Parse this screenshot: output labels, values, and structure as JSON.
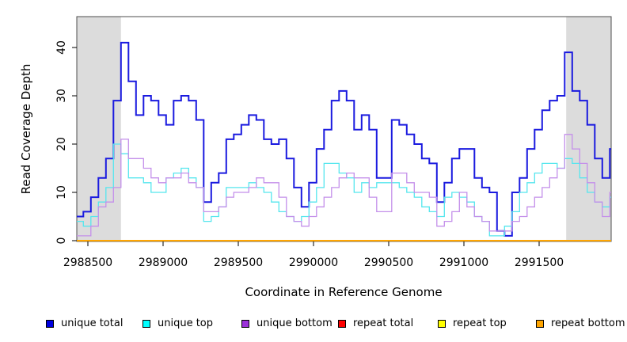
{
  "chart_data": {
    "type": "line",
    "step_interpolation": true,
    "title": "",
    "xlabel": "Coordinate in Reference Genome",
    "ylabel": "Read Coverage Depth",
    "xlim": [
      2988425,
      2991979
    ],
    "ylim": [
      0,
      46
    ],
    "grid": false,
    "legend_position": "bottom",
    "x_ticks": [
      2988500,
      2989000,
      2989500,
      2990000,
      2990500,
      2991000,
      2991500
    ],
    "x_tick_labels": [
      "2988500",
      "2989000",
      "2989500",
      "2990000",
      "2990500",
      "2991000",
      "2991500"
    ],
    "y_ticks": [
      0,
      10,
      20,
      30,
      40
    ],
    "y_tick_labels": [
      "0",
      "10",
      "20",
      "30",
      "40"
    ],
    "shade_color": "#dcdcdc",
    "shaded_regions": [
      {
        "x1": 2988425,
        "x2": 2988720
      },
      {
        "x1": 2991680,
        "x2": 2991979
      }
    ],
    "x_start": 2988420,
    "x_step": 50,
    "series": [
      {
        "name": "unique total",
        "legend_color": "#0000e0",
        "line_color": "#1a1adf",
        "line_width": 2,
        "values": [
          5,
          6,
          9,
          13,
          17,
          29,
          41,
          33,
          26,
          30,
          29,
          26,
          24,
          29,
          30,
          29,
          25,
          8,
          12,
          14,
          21,
          22,
          24,
          26,
          25,
          21,
          20,
          21,
          17,
          11,
          7,
          12,
          19,
          23,
          29,
          31,
          29,
          23,
          26,
          23,
          13,
          13,
          25,
          24,
          22,
          20,
          17,
          16,
          8,
          12,
          17,
          19,
          19,
          13,
          11,
          10,
          2,
          1,
          10,
          13,
          19,
          23,
          27,
          29,
          30,
          39,
          31,
          29,
          24,
          17,
          13,
          19
        ]
      },
      {
        "name": "unique top",
        "legend_color": "#00ffff",
        "line_color": "#55e6ee",
        "line_width": 1.3,
        "values": [
          4,
          3,
          5,
          8,
          11,
          20,
          18,
          13,
          13,
          12,
          10,
          10,
          13,
          14,
          15,
          13,
          11,
          4,
          5,
          7,
          11,
          11,
          11,
          12,
          11,
          10,
          8,
          6,
          5,
          4,
          5,
          8,
          11,
          16,
          16,
          14,
          13,
          10,
          12,
          11,
          12,
          12,
          12,
          11,
          10,
          9,
          7,
          6,
          5,
          9,
          10,
          9,
          8,
          5,
          4,
          1,
          1,
          3,
          6,
          10,
          12,
          14,
          16,
          16,
          15,
          17,
          16,
          13,
          10,
          8,
          7,
          9
        ]
      },
      {
        "name": "unique bottom",
        "legend_color": "#9b30d9",
        "line_color": "#c48fea",
        "line_width": 1.3,
        "values": [
          1,
          1,
          3,
          7,
          8,
          11,
          21,
          17,
          17,
          15,
          13,
          12,
          13,
          13,
          14,
          12,
          11,
          6,
          6,
          7,
          9,
          10,
          10,
          11,
          13,
          12,
          12,
          9,
          5,
          4,
          3,
          5,
          7,
          9,
          11,
          13,
          14,
          13,
          13,
          9,
          6,
          6,
          14,
          14,
          12,
          10,
          10,
          9,
          3,
          4,
          6,
          10,
          7,
          5,
          4,
          2,
          2,
          2,
          4,
          5,
          7,
          9,
          11,
          13,
          15,
          22,
          19,
          16,
          12,
          8,
          5,
          10
        ]
      },
      {
        "name": "repeat total",
        "legend_color": "#ff0000",
        "line_color": "#ff0000",
        "line_width": 1.5,
        "constant": 0
      },
      {
        "name": "repeat top",
        "legend_color": "#ffff00",
        "line_color": "#ffff00",
        "line_width": 1.5,
        "constant": 0
      },
      {
        "name": "repeat bottom",
        "legend_color": "#ffa500",
        "line_color": "#ffa500",
        "line_width": 2,
        "constant": 0
      }
    ]
  },
  "legend": {
    "items": [
      {
        "label": "unique total"
      },
      {
        "label": "unique top"
      },
      {
        "label": "unique bottom"
      },
      {
        "label": "repeat total"
      },
      {
        "label": "repeat top"
      },
      {
        "label": "repeat bottom"
      }
    ]
  }
}
